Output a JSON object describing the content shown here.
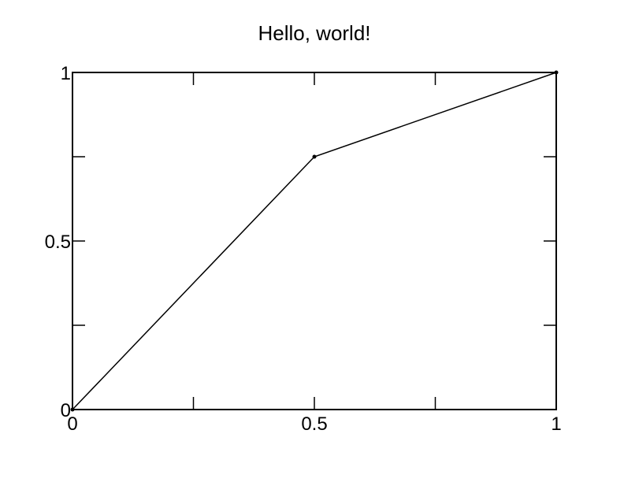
{
  "chart_data": {
    "type": "line",
    "title": "Hello, world!",
    "xlabel": "",
    "ylabel": "",
    "xlim": [
      0,
      1
    ],
    "ylim": [
      0,
      1
    ],
    "grid": false,
    "x_ticks": [
      0,
      0.25,
      0.5,
      0.75,
      1
    ],
    "y_ticks": [
      0,
      0.25,
      0.5,
      0.75,
      1
    ],
    "x_tick_labels": [
      "0",
      "",
      "0.5",
      "",
      "1"
    ],
    "y_tick_labels": [
      "0",
      "",
      "0.5",
      "",
      "1"
    ],
    "series": [
      {
        "x": [
          0,
          0.5,
          1
        ],
        "y": [
          0,
          0.75,
          1
        ],
        "color": "#000000"
      }
    ]
  }
}
